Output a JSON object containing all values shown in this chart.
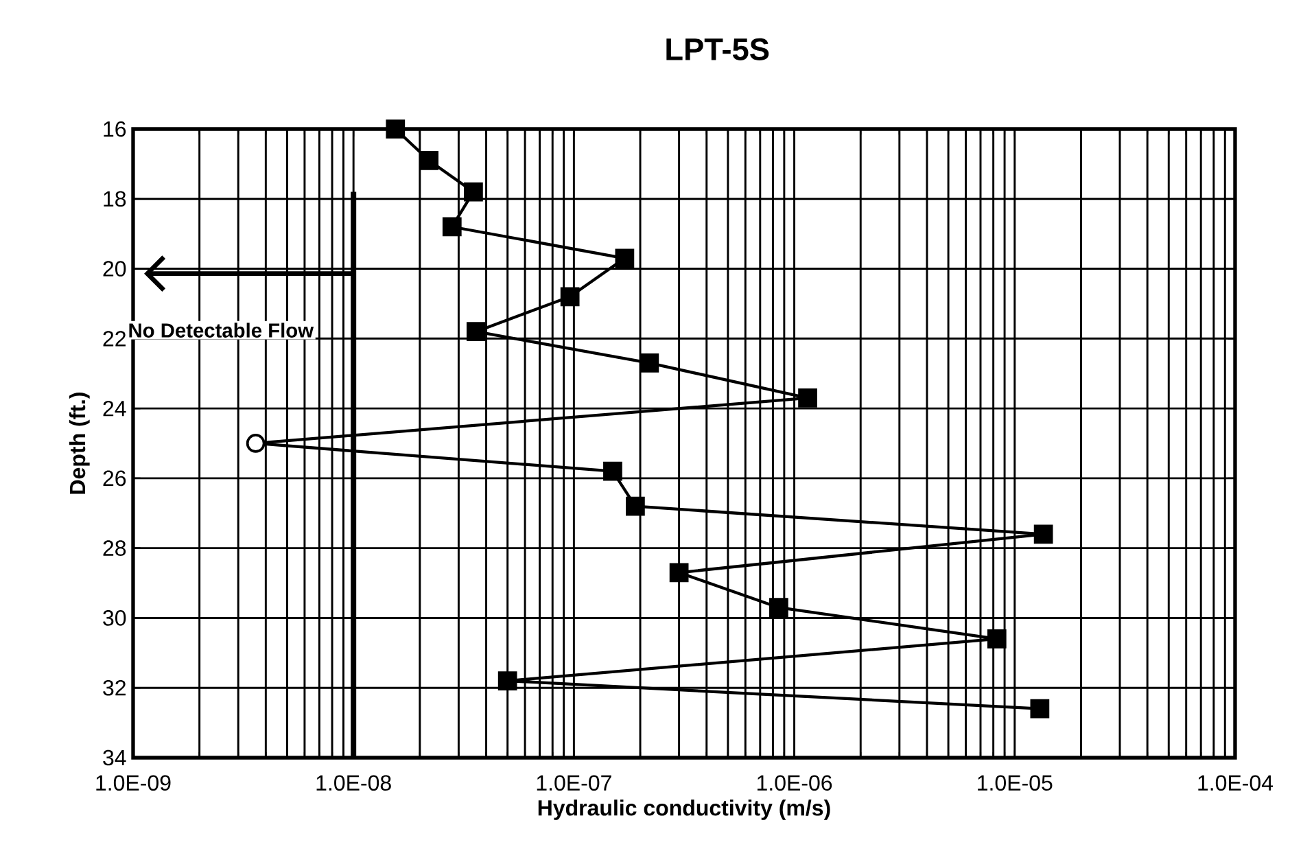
{
  "chart_data": {
    "type": "line",
    "title": "LPT-5S",
    "xlabel": "Hydraulic conductivity (m/s)",
    "ylabel": "Depth (ft.)",
    "log": "x",
    "grid": true,
    "xlim": [
      1e-09,
      0.0001
    ],
    "xticks": [
      {
        "value": 1e-09,
        "label": "1.0E-09"
      },
      {
        "value": 1e-08,
        "label": "1.0E-08"
      },
      {
        "value": 1e-07,
        "label": "1.0E-07"
      },
      {
        "value": 1e-06,
        "label": "1.0E-06"
      },
      {
        "value": 1e-05,
        "label": "1.0E-05"
      },
      {
        "value": 0.0001,
        "label": "1.0E-04"
      }
    ],
    "ylim": [
      34,
      16
    ],
    "yticks": [
      16,
      18,
      20,
      22,
      24,
      26,
      28,
      30,
      32,
      34
    ],
    "series": [
      {
        "color": "#000000",
        "marker": "none",
        "line_style": "solid",
        "x": [
          1.55e-08,
          2.2e-08,
          3.5e-08,
          2.8e-08,
          1.7e-07,
          9.6e-08,
          3.6e-08,
          2.2e-07,
          1.15e-06,
          3.6e-09,
          1.5e-07,
          1.9e-07,
          1.35e-05,
          3e-07,
          8.5e-07,
          8.3e-06,
          5e-08,
          1.3e-05
        ],
        "values": [
          16,
          16.9,
          17.8,
          18.8,
          19.7,
          20.8,
          21.8,
          22.7,
          23.7,
          25,
          25.8,
          26.8,
          27.6,
          28.7,
          29.7,
          30.6,
          31.8,
          32.6
        ]
      },
      {
        "type": "scatter",
        "color": "#000000",
        "marker": "square",
        "x": [
          1.55e-08,
          2.2e-08,
          3.5e-08,
          2.8e-08,
          1.7e-07,
          9.6e-08,
          3.6e-08,
          2.2e-07,
          1.15e-06,
          1.5e-07,
          1.9e-07,
          1.35e-05,
          3e-07,
          8.5e-07,
          8.3e-06,
          5e-08,
          1.3e-05
        ],
        "values": [
          16,
          16.9,
          17.8,
          18.8,
          19.7,
          20.8,
          21.8,
          22.7,
          23.7,
          25.8,
          26.8,
          27.6,
          28.7,
          29.7,
          30.6,
          31.8,
          32.6
        ]
      },
      {
        "type": "scatter",
        "color": "#000000",
        "marker": "circle",
        "x": [
          3.6e-09
        ],
        "values": [
          25
        ]
      }
    ],
    "ref_lines": [
      {
        "axis": "x",
        "value": 1e-08,
        "label": "No Detectable Flow",
        "color": "#000000",
        "line_style": "solid"
      }
    ]
  }
}
